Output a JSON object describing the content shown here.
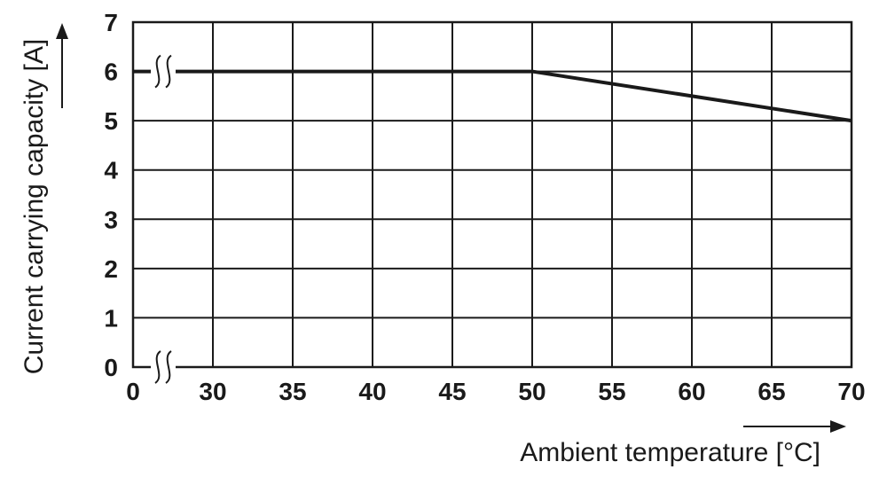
{
  "chart_data": {
    "type": "line",
    "xlabel": "Ambient temperature [°C]",
    "ylabel": "Current carrying capacity [A]",
    "x_ticks": [
      "0",
      "30",
      "35",
      "40",
      "45",
      "50",
      "55",
      "60",
      "65",
      "70"
    ],
    "x_tick_values": [
      25,
      30,
      35,
      40,
      45,
      50,
      55,
      60,
      65,
      70
    ],
    "y_ticks": [
      "0",
      "1",
      "2",
      "3",
      "4",
      "5",
      "6",
      "7"
    ],
    "xlim": [
      25,
      70
    ],
    "ylim": [
      0,
      7
    ],
    "axis_breaks": {
      "x": true,
      "y": true
    },
    "grid": true,
    "series": [
      {
        "x": [
          25,
          50,
          70
        ],
        "y": [
          6,
          6,
          5
        ]
      }
    ],
    "color": "#1a1a1a"
  }
}
